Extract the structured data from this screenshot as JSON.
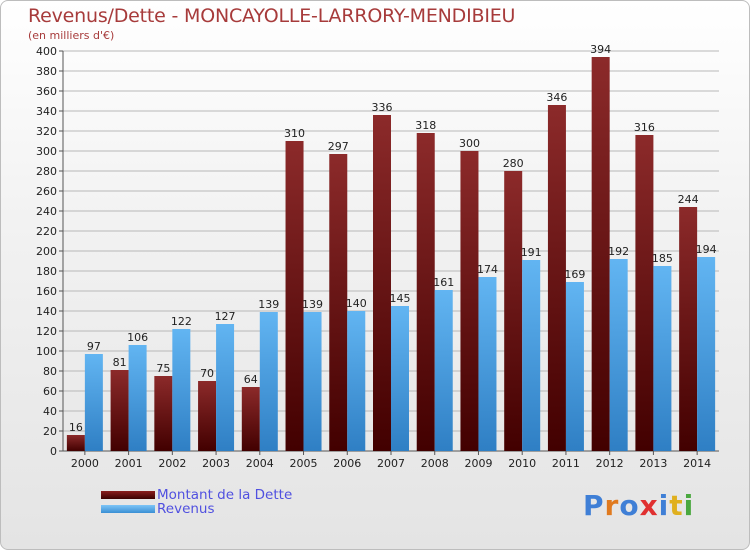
{
  "title": "Revenus/Dette - MONCAYOLLE-LARRORY-MENDIBIEU",
  "subtitle": "(en milliers d'€)",
  "legend": {
    "dette": "Montant de la Dette",
    "revenus": "Revenus"
  },
  "logo": "Proxiti",
  "colors": {
    "dette": "#7a1f1f",
    "revenus": "#4aa3e8",
    "title": "#a73b3b"
  },
  "chart_data": {
    "type": "bar",
    "categories": [
      "2000",
      "2001",
      "2002",
      "2003",
      "2004",
      "2005",
      "2006",
      "2007",
      "2008",
      "2009",
      "2010",
      "2011",
      "2012",
      "2013",
      "2014"
    ],
    "series": [
      {
        "name": "Montant de la Dette",
        "values": [
          16,
          81,
          75,
          70,
          64,
          310,
          297,
          336,
          318,
          300,
          280,
          346,
          394,
          316,
          244
        ]
      },
      {
        "name": "Revenus",
        "values": [
          97,
          106,
          122,
          127,
          139,
          139,
          140,
          145,
          161,
          174,
          191,
          169,
          192,
          185,
          194
        ]
      }
    ],
    "ylim": [
      0,
      400
    ],
    "yticks": [
      0,
      20,
      40,
      60,
      80,
      100,
      120,
      140,
      160,
      180,
      200,
      220,
      240,
      260,
      280,
      300,
      320,
      340,
      360,
      380,
      400
    ],
    "grid": true,
    "legend_position": "bottom-left"
  }
}
